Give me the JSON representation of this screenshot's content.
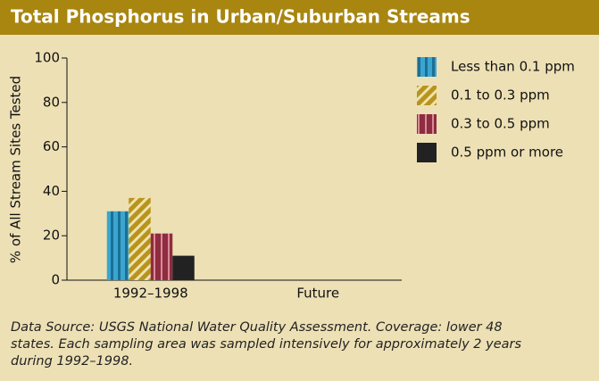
{
  "chart_data": {
    "type": "bar",
    "title": "Total Phosphorus in Urban/Suburban Streams",
    "ylabel": "% of All Stream Sites Tested",
    "categories": [
      "1992–1998",
      "Future"
    ],
    "series": [
      {
        "name": "Less than 0.1 ppm",
        "color": "#3aa6cf",
        "values": [
          31,
          null
        ]
      },
      {
        "name": "0.1 to 0.3 ppm",
        "color": "#b8941c",
        "values": [
          37,
          null
        ]
      },
      {
        "name": "0.3 to 0.5 ppm",
        "color": "#8e2c40",
        "values": [
          21,
          null
        ]
      },
      {
        "name": "0.5 ppm or more",
        "color": "#222222",
        "values": [
          11,
          null
        ]
      }
    ],
    "ylim": [
      0,
      100
    ],
    "yticks": [
      0,
      20,
      40,
      60,
      80,
      100
    ],
    "legend": "right",
    "note": [
      "Data Source: USGS National Water Quality Assessment. Coverage: lower 48",
      "states. Each sampling area was sampled intensively for approximately 2 years",
      "during 1992–1998."
    ]
  }
}
